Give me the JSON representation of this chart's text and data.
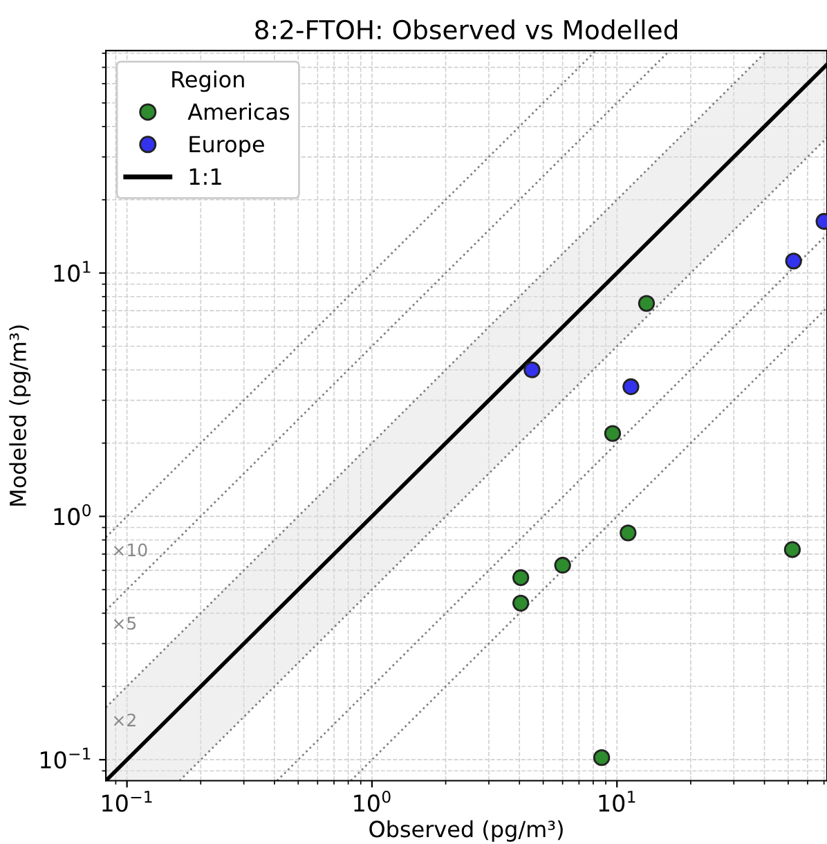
{
  "chart_data": {
    "type": "scatter",
    "title": "8:2-FTOH: Observed vs Modelled",
    "xlabel": "Observed (pg/m³)",
    "ylabel": "Modeled (pg/m³)",
    "legend_title": "Region",
    "log": "xy",
    "xlim": [
      0.082,
      72
    ],
    "ylim": [
      0.082,
      82
    ],
    "xticks": [
      {
        "value": 0.1,
        "label": "10$^{−1}$"
      },
      {
        "value": 1,
        "label": "10$^{0}$"
      },
      {
        "value": 10,
        "label": "10$^{1}$"
      }
    ],
    "yticks": [
      {
        "value": 0.1,
        "label": "10$^{−1}$"
      },
      {
        "value": 1,
        "label": "10$^{0}$"
      },
      {
        "value": 10,
        "label": "10$^{1}$"
      }
    ],
    "grid": true,
    "legend": "top left",
    "series": [
      {
        "name": "Americas",
        "color": "#2e8b2e",
        "x": [
          13.2,
          9.6,
          11.1,
          6.0,
          4.05,
          4.05,
          8.66,
          52
        ],
        "values": [
          7.5,
          2.19,
          0.855,
          0.63,
          0.56,
          0.44,
          0.102,
          0.73
        ],
        "marker": "circle"
      },
      {
        "name": "Europe",
        "color": "#3333ee",
        "x": [
          4.5,
          11.4,
          52.6,
          70
        ],
        "values": [
          4.0,
          3.41,
          11.2,
          16.3
        ],
        "marker": "circle"
      },
      {
        "name": "1:1",
        "type": "line",
        "color": "#000000",
        "line_style": "solid",
        "x": [
          0.082,
          0.164,
          41,
          72
        ],
        "values": [
          0.082,
          0.164,
          41,
          72
        ],
        "lower": [
          0.082,
          0.082,
          20.5,
          36
        ],
        "upper": [
          0.164,
          0.328,
          82,
          82
        ]
      },
      {
        "type": "line",
        "color": "#808080",
        "line_style": "dotted",
        "x": [
          0.082,
          41
        ],
        "values": [
          0.164,
          82
        ]
      },
      {
        "type": "line",
        "color": "#808080",
        "line_style": "dotted",
        "x": [
          0.082,
          16.4
        ],
        "values": [
          0.41,
          82
        ]
      },
      {
        "type": "line",
        "color": "#808080",
        "line_style": "dotted",
        "x": [
          0.082,
          8.2
        ],
        "values": [
          0.82,
          82
        ]
      },
      {
        "type": "line",
        "color": "#808080",
        "line_style": "dotted",
        "x": [
          0.164,
          72
        ],
        "values": [
          0.082,
          36
        ]
      },
      {
        "type": "line",
        "color": "#808080",
        "line_style": "dotted",
        "x": [
          0.41,
          72
        ],
        "values": [
          0.082,
          14.4
        ]
      },
      {
        "type": "line",
        "color": "#808080",
        "line_style": "dotted",
        "x": [
          0.82,
          72
        ],
        "values": [
          0.082,
          7.2
        ]
      }
    ],
    "annotations": [
      "×10",
      "×5",
      "×2"
    ]
  }
}
